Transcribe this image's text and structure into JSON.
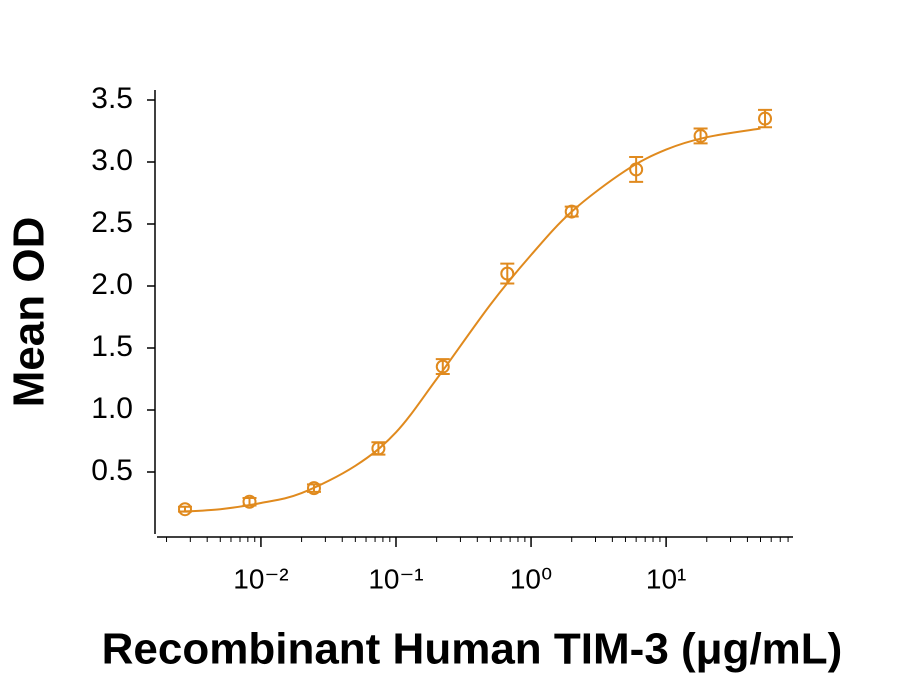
{
  "chart_data": {
    "type": "scatter",
    "xlabel": "Recombinant Human TIM-3 (μg/mL)",
    "ylabel": "Mean OD",
    "xscale": "log",
    "xminor": true,
    "xlim": [
      0.0017,
      87
    ],
    "ylim": [
      0,
      3.5
    ],
    "xticks": [
      {
        "value": 0.01,
        "label": "10⁻²"
      },
      {
        "value": 0.1,
        "label": "10⁻¹"
      },
      {
        "value": 1,
        "label": "10⁰"
      },
      {
        "value": 10,
        "label": "10¹"
      }
    ],
    "yticks": [
      0.5,
      {
        "value": 1,
        "label": "1.0"
      },
      1.5,
      {
        "value": 2,
        "label": "2.0"
      },
      2.5,
      {
        "value": 3,
        "label": "3.0"
      },
      3.5
    ],
    "series": [
      {
        "type": "scatter",
        "color": "#e08a1e",
        "x": [
          0.00274,
          0.00823,
          0.0247,
          0.0741,
          0.222,
          0.667,
          2,
          6,
          18,
          54
        ],
        "values": [
          0.2,
          0.26,
          0.37,
          0.69,
          1.35,
          2.1,
          2.6,
          2.94,
          3.21,
          3.35
        ],
        "errors": [
          0.02,
          0.03,
          0.03,
          0.05,
          0.06,
          0.08,
          0.04,
          0.1,
          0.06,
          0.07
        ]
      },
      {
        "type": "line",
        "color": "#e08a1e",
        "x": [
          0.0025,
          0.005,
          0.01,
          0.02,
          0.05,
          0.1,
          0.2,
          0.5,
          1,
          2,
          5,
          10,
          20,
          50
        ],
        "values": [
          0.18,
          0.2,
          0.25,
          0.33,
          0.55,
          0.82,
          1.25,
          1.85,
          2.25,
          2.6,
          2.93,
          3.1,
          3.2,
          3.27
        ]
      }
    ]
  }
}
